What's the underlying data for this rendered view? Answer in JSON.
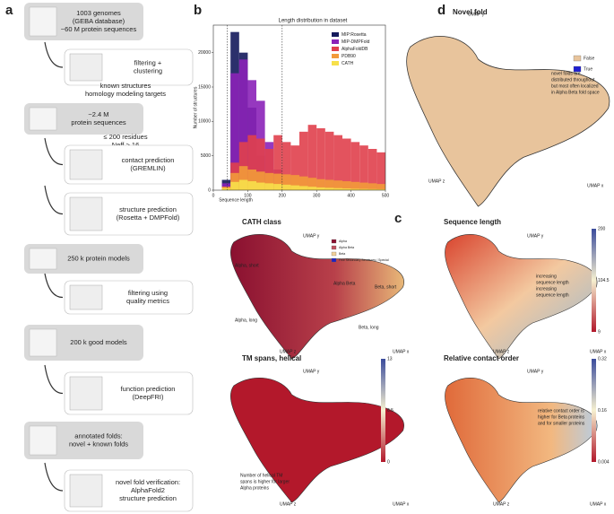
{
  "panel_letters": [
    "a",
    "b",
    "c",
    "d"
  ],
  "flowchart": {
    "steps": [
      {
        "lines": [
          "1003 genomes",
          "(GEBA database)",
          "~60 M protein sequences"
        ]
      },
      {
        "lines": [
          "filtering +",
          "clustering"
        ]
      },
      {
        "lines": [
          "known structures",
          "homology modeling targets"
        ]
      },
      {
        "lines": [
          "~2.4 M",
          "protein sequences"
        ]
      },
      {
        "lines": [
          "≤ 200 residues",
          "Neff > 16"
        ]
      },
      {
        "lines": [
          "contact prediction",
          "(GREMLIN)"
        ]
      },
      {
        "lines": [
          "structure prediction",
          "(Rosetta + DMPFold)"
        ]
      },
      {
        "lines": [
          "250 k protein models"
        ]
      },
      {
        "lines": [
          "filtering using",
          "quality metrics"
        ]
      },
      {
        "lines": [
          "200 k good models"
        ]
      },
      {
        "lines": [
          "function prediction",
          "(DeepFRI)"
        ]
      },
      {
        "lines": [
          "annotated folds:",
          "novel + known folds"
        ]
      },
      {
        "lines": [
          "novel fold verification:",
          "AlphaFold2",
          "structure prediction"
        ]
      }
    ]
  },
  "chart_data": {
    "type": "histogram",
    "title": "Length distribution in dataset",
    "x_label": "Sequence length",
    "y_label": "Number of structures",
    "bins": [
      0,
      25,
      50,
      75,
      100,
      125,
      150,
      175,
      200,
      225,
      250,
      275,
      300,
      325,
      350,
      375,
      400,
      425,
      450,
      475,
      500
    ],
    "series": [
      {
        "name": "MIP:Rosetta",
        "color": "#141a5c",
        "values": [
          0,
          1500,
          23000,
          20000,
          12000,
          5000,
          1000,
          200,
          0,
          0,
          0,
          0,
          0,
          0,
          0,
          0,
          0,
          0,
          0,
          0
        ]
      },
      {
        "name": "MIP-DMPFold",
        "color": "#8b22b8",
        "values": [
          0,
          1000,
          17000,
          19000,
          16000,
          13000,
          7000,
          3000,
          0,
          0,
          0,
          0,
          0,
          0,
          0,
          0,
          0,
          0,
          0,
          0
        ]
      },
      {
        "name": "AlphaFoldDB",
        "color": "#e0404c",
        "values": [
          0,
          500,
          4000,
          7000,
          8000,
          7500,
          6000,
          8000,
          7000,
          6500,
          8500,
          9500,
          9000,
          8500,
          8000,
          7500,
          7000,
          6500,
          6000,
          5500
        ]
      },
      {
        "name": "PDB90",
        "color": "#f29a3a",
        "values": [
          0,
          500,
          2500,
          3500,
          3000,
          2700,
          2500,
          2400,
          2300,
          2200,
          2000,
          1800,
          1600,
          1500,
          1400,
          1300,
          1200,
          1100,
          1000,
          900
        ]
      },
      {
        "name": "CATH",
        "color": "#f7e04a",
        "values": [
          0,
          300,
          1200,
          1500,
          1300,
          1100,
          1000,
          900,
          800,
          700,
          600,
          500,
          400,
          350,
          300,
          250,
          200,
          180,
          160,
          140
        ]
      }
    ],
    "reference_lines": [
      40,
      200
    ],
    "xlim": [
      0,
      500
    ],
    "xticks": [
      0,
      100,
      200,
      300,
      400,
      500
    ],
    "ylim": [
      0,
      24000
    ],
    "yticks": [
      0,
      5000,
      10000,
      15000,
      20000
    ],
    "legend": "upper right"
  },
  "umap": {
    "axis_labels": [
      "UMAP y",
      "UMAP z",
      "UMAP x"
    ],
    "panels": [
      {
        "title": "Novel fold",
        "legend": [
          "False",
          "True"
        ],
        "annotations": [
          "novel folds are",
          "distributed throughout",
          "but most often localized",
          "in Alpha Beta fold space"
        ]
      },
      {
        "title": "CATH class",
        "legend": [
          "Alpha",
          "Alpha Beta",
          "Beta",
          "Few Secondary Structures / Special"
        ],
        "annotations": [
          "Alpha, short",
          "Alpha Beta",
          "Beta, short",
          "Alpha, long",
          "Beta, long"
        ]
      },
      {
        "title": "Sequence length",
        "colorbar": [
          "200",
          "104.5",
          "9"
        ],
        "annotations": [
          "increasing",
          "sequence length",
          "increasing",
          "sequence length"
        ]
      },
      {
        "title": "TM spans, helical",
        "colorbar": [
          "13",
          "6.5",
          "0"
        ],
        "annotations": [
          "Number of helical TM",
          "spans is higher for larger",
          "Alpha proteins"
        ]
      },
      {
        "title": "Relative contact order",
        "colorbar": [
          "0.32",
          "0.16",
          "0.004"
        ],
        "annotations": [
          "relative contact order is",
          "higher for Beta proteins",
          "and for smaller proteins"
        ]
      }
    ]
  }
}
